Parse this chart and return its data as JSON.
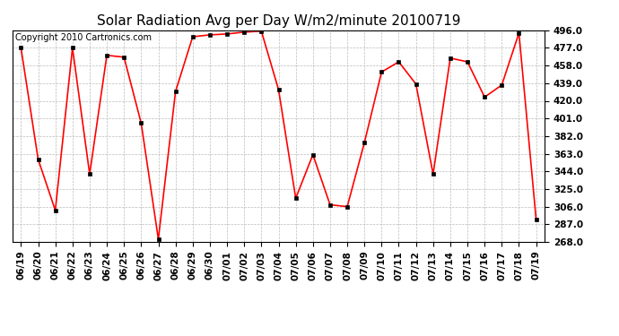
{
  "title": "Solar Radiation Avg per Day W/m2/minute 20100719",
  "copyright": "Copyright 2010 Cartronics.com",
  "labels": [
    "06/19",
    "06/20",
    "06/21",
    "06/22",
    "06/23",
    "06/24",
    "06/25",
    "06/26",
    "06/27",
    "06/28",
    "06/29",
    "06/30",
    "07/01",
    "07/02",
    "07/03",
    "07/04",
    "07/05",
    "07/06",
    "07/07",
    "07/08",
    "07/09",
    "07/10",
    "07/11",
    "07/12",
    "07/13",
    "07/14",
    "07/15",
    "07/16",
    "07/17",
    "07/18",
    "07/19"
  ],
  "values": [
    477.0,
    357.0,
    302.0,
    477.0,
    341.0,
    469.0,
    467.0,
    396.0,
    271.0,
    430.0,
    489.0,
    491.0,
    492.0,
    494.0,
    495.0,
    432.0,
    315.0,
    362.0,
    308.0,
    306.0,
    375.0,
    451.0,
    462.0,
    438.0,
    341.0,
    466.0,
    462.0,
    424.0,
    437.0,
    493.0,
    292.0
  ],
  "ylim": [
    268.0,
    496.0
  ],
  "yticks": [
    268.0,
    287.0,
    306.0,
    325.0,
    344.0,
    363.0,
    382.0,
    401.0,
    420.0,
    439.0,
    458.0,
    477.0,
    496.0
  ],
  "line_color": "#ff0000",
  "marker_color": "#000000",
  "bg_color": "#ffffff",
  "grid_color": "#bbbbbb",
  "title_fontsize": 11,
  "copyright_fontsize": 7,
  "tick_fontsize": 7.5,
  "figwidth": 6.9,
  "figheight": 3.75,
  "dpi": 100
}
